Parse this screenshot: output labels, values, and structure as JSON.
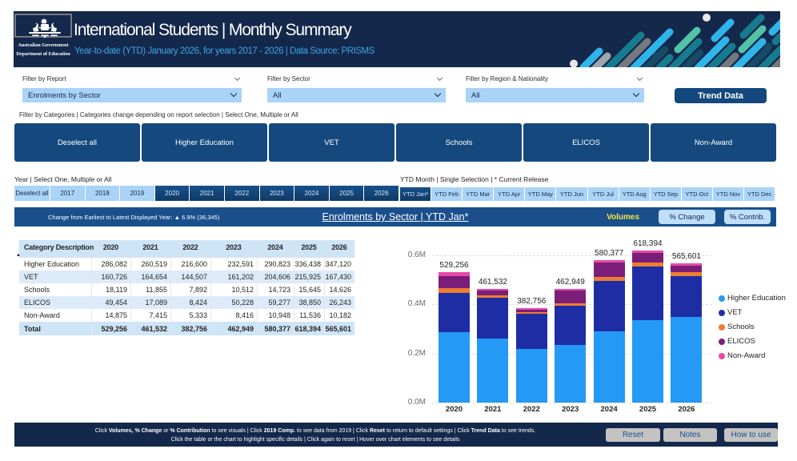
{
  "header": {
    "logo_line1": "Australian Government",
    "logo_line2": "Department of Education",
    "title": "International Students | Monthly Summary",
    "subtitle": "Year-to-date (YTD) January 2026, for years 2017 - 2026 | Data Source: PRISMS"
  },
  "filters": [
    {
      "label": "Filter by Report",
      "value": "Enrolments by Sector"
    },
    {
      "label": "Filter by Sector",
      "value": "All"
    },
    {
      "label": "Filter by Region & Nationality",
      "value": "All"
    }
  ],
  "trend_button_label": "Trend Data",
  "category_filter": {
    "label": "Filter by Categories | Categories change depending on report selection | Select One, Multiple or All",
    "buttons": [
      "Deselect all",
      "Higher Education",
      "VET",
      "Schools",
      "ELICOS",
      "Non-Award"
    ]
  },
  "year_slicer": {
    "label": "Year | Select One, Multiple or All",
    "buttons": [
      {
        "label": "Deselect all",
        "selected": false
      },
      {
        "label": "2017",
        "selected": false
      },
      {
        "label": "2018",
        "selected": false
      },
      {
        "label": "2019",
        "selected": false
      },
      {
        "label": "2020",
        "selected": true
      },
      {
        "label": "2021",
        "selected": true
      },
      {
        "label": "2022",
        "selected": true
      },
      {
        "label": "2023",
        "selected": true
      },
      {
        "label": "2024",
        "selected": true
      },
      {
        "label": "2025",
        "selected": true
      },
      {
        "label": "2026",
        "selected": true
      }
    ]
  },
  "month_slicer": {
    "label": "YTD Month | Single Selection | * Current Release",
    "buttons": [
      {
        "label": "YTD Jan*",
        "selected": true
      },
      {
        "label": "YTD Feb",
        "selected": false
      },
      {
        "label": "YTD Mar",
        "selected": false
      },
      {
        "label": "YTD Apr",
        "selected": false
      },
      {
        "label": "YTD May",
        "selected": false
      },
      {
        "label": "YTD Jun",
        "selected": false
      },
      {
        "label": "YTD Jul",
        "selected": false
      },
      {
        "label": "YTD Aug",
        "selected": false
      },
      {
        "label": "YTD Sep",
        "selected": false
      },
      {
        "label": "YTD Oct",
        "selected": false
      },
      {
        "label": "YTD Nov",
        "selected": false
      },
      {
        "label": "YTD Dec",
        "selected": false
      }
    ]
  },
  "chart_header": {
    "change_text": "Change from Earliest to Latest Displayed Year: ▲ 6.9% (36,345)",
    "title": "Enrolments by Sector | YTD Jan*",
    "volumes_label": "Volumes",
    "pct_change_label": "% Change",
    "pct_contrib_label": "% Contrib."
  },
  "table": {
    "columns": [
      "Category Description",
      "2020",
      "2021",
      "2022",
      "2023",
      "2024",
      "2025",
      "2026"
    ],
    "rows": [
      {
        "label": "Higher Education",
        "values": [
          "286,082",
          "260,519",
          "216,600",
          "232,591",
          "290,823",
          "336,438",
          "347,120"
        ]
      },
      {
        "label": "VET",
        "values": [
          "160,726",
          "164,654",
          "144,507",
          "161,202",
          "204,606",
          "215,925",
          "167,430"
        ]
      },
      {
        "label": "Schools",
        "values": [
          "18,119",
          "11,855",
          "7,892",
          "10,512",
          "14,723",
          "15,645",
          "14,626"
        ]
      },
      {
        "label": "ELICOS",
        "values": [
          "49,454",
          "17,089",
          "8,424",
          "50,228",
          "59,277",
          "38,850",
          "26,243"
        ]
      },
      {
        "label": "Non-Award",
        "values": [
          "14,875",
          "7,415",
          "5,333",
          "8,416",
          "10,948",
          "11,536",
          "10,182"
        ]
      }
    ],
    "total_row": {
      "label": "Total",
      "values": [
        "529,256",
        "461,532",
        "382,756",
        "462,949",
        "580,377",
        "618,394",
        "565,601"
      ]
    }
  },
  "chart_data": {
    "type": "bar",
    "stacked": true,
    "title": "Enrolments by Sector | YTD Jan*",
    "categories": [
      "2020",
      "2021",
      "2022",
      "2023",
      "2024",
      "2025",
      "2026"
    ],
    "series": [
      {
        "name": "Higher Education",
        "color": "#2499F5",
        "values": [
          286082,
          260519,
          216600,
          232591,
          290823,
          336438,
          347120
        ]
      },
      {
        "name": "VET",
        "color": "#1F2DA5",
        "values": [
          160726,
          164654,
          144507,
          161202,
          204606,
          215925,
          167430
        ]
      },
      {
        "name": "Schools",
        "color": "#ED7D31",
        "values": [
          18119,
          11855,
          7892,
          10512,
          14723,
          15645,
          14626
        ]
      },
      {
        "name": "ELICOS",
        "color": "#7B1E7A",
        "values": [
          49454,
          17089,
          8424,
          50228,
          59277,
          38850,
          26243
        ]
      },
      {
        "name": "Non-Award",
        "color": "#E74BA8",
        "values": [
          14875,
          7415,
          5333,
          8416,
          10948,
          11536,
          10182
        ]
      }
    ],
    "totals": [
      529256,
      461532,
      382756,
      462949,
      580377,
      618394,
      565601
    ],
    "total_labels": [
      "529,256",
      "461,532",
      "382,756",
      "462,949",
      "580,377",
      "618,394",
      "565,601"
    ],
    "y_ticks": [
      {
        "value": 0,
        "label": "0.0M"
      },
      {
        "value": 200000,
        "label": "0.2M"
      },
      {
        "value": 400000,
        "label": "0.4M"
      },
      {
        "value": 600000,
        "label": "0.6M"
      }
    ],
    "ylim": [
      0,
      650000
    ],
    "gridlines": "dashed",
    "legend_position": "right"
  },
  "footer": {
    "line1_segments": [
      {
        "t": "Click ",
        "b": false
      },
      {
        "t": "Volumes, % Change",
        "b": true
      },
      {
        "t": " or ",
        "b": false
      },
      {
        "t": "% Contribution",
        "b": true
      },
      {
        "t": " to see visuals | Click ",
        "b": false
      },
      {
        "t": "2019 Comp.",
        "b": true
      },
      {
        "t": " to see data from 2019 | Click ",
        "b": false
      },
      {
        "t": "Reset",
        "b": true
      },
      {
        "t": " to return to default settings | Click ",
        "b": false
      },
      {
        "t": "Trend Data",
        "b": true
      },
      {
        "t": " to see trends.",
        "b": false
      }
    ],
    "line2": "Click the table or the chart to highlight specific details | Click again to reset | Hover over chart elements to see details",
    "buttons": [
      "Reset",
      "Notes",
      "How to use"
    ]
  }
}
